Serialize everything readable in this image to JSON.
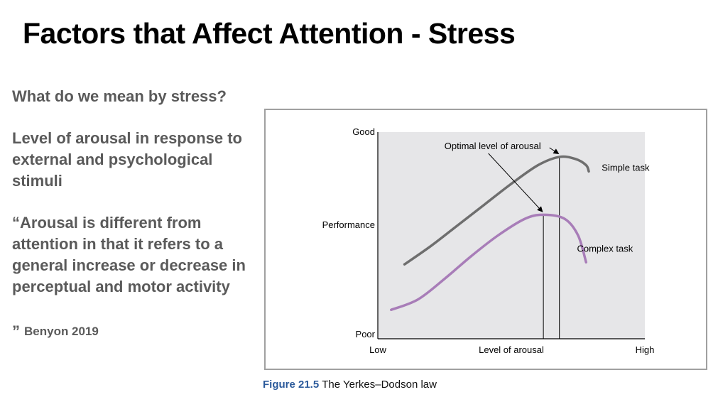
{
  "slide": {
    "title": "Factors that Affect Attention - Stress",
    "question": "What do we mean by stress?",
    "definition": "Level of arousal in response to external and psychological stimuli",
    "quote_open": "“",
    "quote_text": "Arousal is different from attention in that it refers to a general increase or decrease in perceptual and motor activity",
    "quote_close": "”",
    "citation": "Benyon 2019"
  },
  "figure": {
    "number": "Figure 21.5",
    "caption": "The Yerkes–Dodson law"
  },
  "chart_data": {
    "type": "line",
    "title": "",
    "xlabel": "Level of arousal",
    "ylabel": "Performance",
    "x_tick_labels": [
      "Low",
      "High"
    ],
    "y_tick_labels": [
      "Poor",
      "Good"
    ],
    "xlim": [
      0,
      1
    ],
    "ylim": [
      0,
      1
    ],
    "grid": false,
    "background": "#e6e6e8",
    "series": [
      {
        "name": "Simple task",
        "color": "#6e6e6e",
        "x": [
          0.1,
          0.2,
          0.3,
          0.4,
          0.5,
          0.6,
          0.68,
          0.74,
          0.78,
          0.79
        ],
        "y": [
          0.36,
          0.45,
          0.55,
          0.65,
          0.75,
          0.84,
          0.88,
          0.87,
          0.84,
          0.81
        ]
      },
      {
        "name": "Complex task",
        "color": "#a87db8",
        "x": [
          0.05,
          0.15,
          0.25,
          0.35,
          0.45,
          0.55,
          0.62,
          0.7,
          0.75,
          0.78
        ],
        "y": [
          0.14,
          0.19,
          0.29,
          0.4,
          0.5,
          0.58,
          0.6,
          0.58,
          0.5,
          0.37
        ]
      }
    ],
    "optimal_markers": [
      {
        "series": "Simple task",
        "x": 0.68,
        "y": 0.88
      },
      {
        "series": "Complex task",
        "x": 0.62,
        "y": 0.6
      }
    ],
    "annotation": "Optimal level of arousal"
  }
}
